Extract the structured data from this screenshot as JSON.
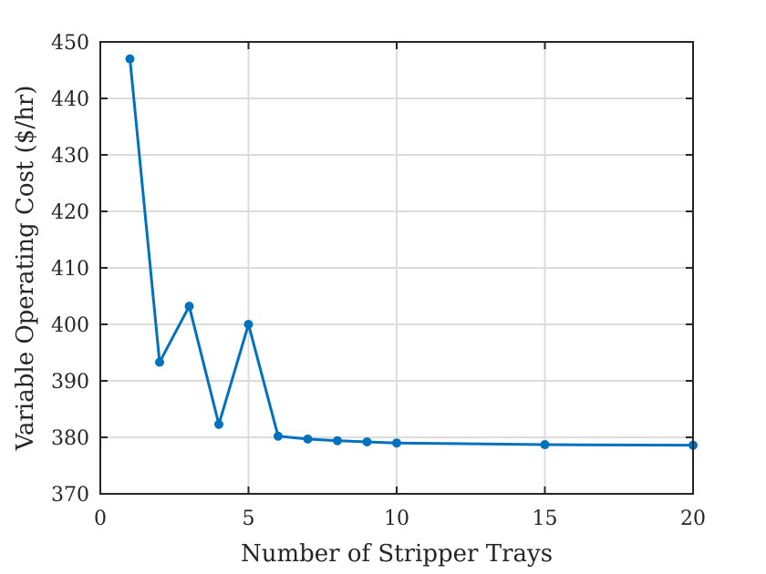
{
  "chart_data": {
    "type": "line",
    "title": "",
    "xlabel": "Number of Stripper Trays",
    "ylabel": "Variable Operating Cost ($/hr)",
    "xlim": [
      0,
      20
    ],
    "ylim": [
      370,
      450
    ],
    "xticks": [
      "0",
      "5",
      "10",
      "15",
      "20"
    ],
    "yticks": [
      "370",
      "380",
      "390",
      "400",
      "410",
      "420",
      "430",
      "440",
      "450"
    ],
    "grid": true,
    "legend": "none",
    "series": [
      {
        "color": "#0072bd",
        "marker": "circle",
        "x": [
          1,
          2,
          3,
          4,
          5,
          6,
          7,
          8,
          9,
          10,
          15,
          20
        ],
        "y": [
          447.0,
          393.3,
          403.2,
          382.3,
          400.0,
          380.2,
          379.7,
          379.4,
          379.2,
          379.0,
          378.7,
          378.6
        ]
      }
    ]
  }
}
